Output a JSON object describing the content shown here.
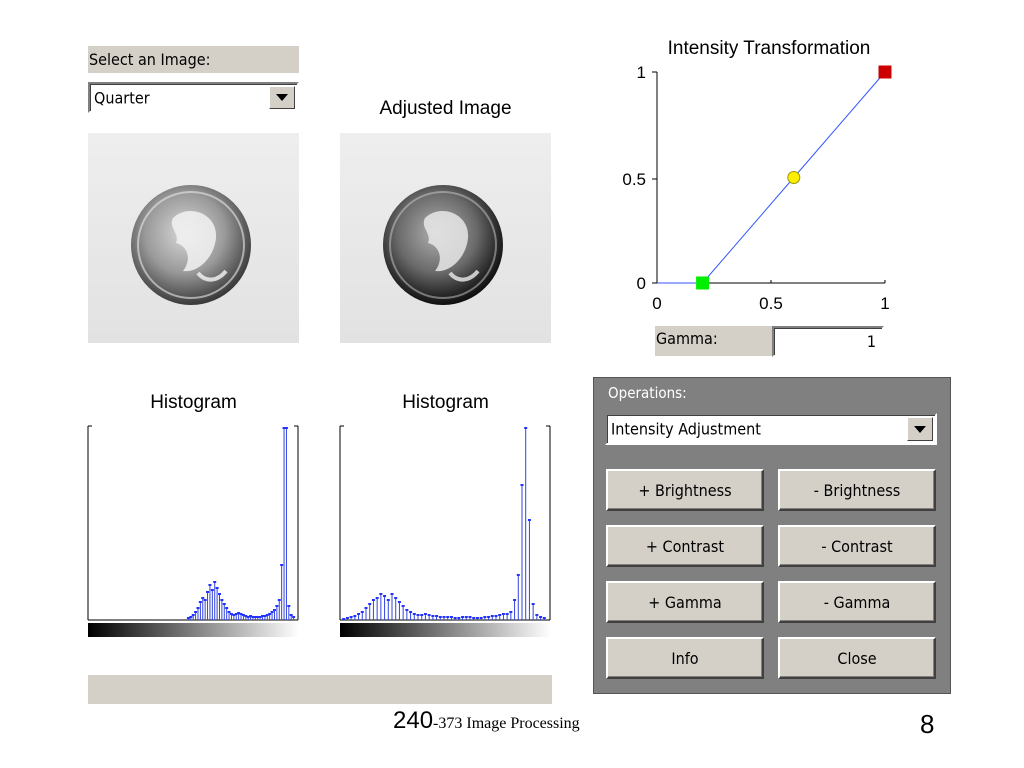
{
  "select_image": {
    "label": "Select an Image:",
    "value": "Quarter"
  },
  "adjusted_image": {
    "title": "Adjusted Image"
  },
  "histograms": {
    "left": {
      "title": "Histogram"
    },
    "right": {
      "title": "Histogram"
    }
  },
  "transform_plot": {
    "title": "Intensity Transformation",
    "y_ticks": [
      "1",
      "0.5",
      "0"
    ],
    "x_ticks": [
      "0",
      "0.5",
      "1"
    ],
    "points": [
      {
        "name": "low",
        "x": 0.2,
        "y": 0.0,
        "color": "#00ee00"
      },
      {
        "name": "mid",
        "x": 0.6,
        "y": 0.5,
        "color": "#ffee00"
      },
      {
        "name": "high",
        "x": 1.0,
        "y": 1.0,
        "color": "#cc0000"
      }
    ]
  },
  "gamma": {
    "label": "Gamma:",
    "value": "1"
  },
  "operations": {
    "label": "Operations:",
    "value": "Intensity Adjustment",
    "buttons": [
      {
        "id": "plus-brightness",
        "label": "+ Brightness"
      },
      {
        "id": "minus-brightness",
        "label": "- Brightness"
      },
      {
        "id": "plus-contrast",
        "label": "+ Contrast"
      },
      {
        "id": "minus-contrast",
        "label": "- Contrast"
      },
      {
        "id": "plus-gamma",
        "label": "+ Gamma"
      },
      {
        "id": "minus-gamma",
        "label": "- Gamma"
      },
      {
        "id": "info",
        "label": "Info"
      },
      {
        "id": "close",
        "label": "Close"
      }
    ]
  },
  "footer": {
    "course_number": "240",
    "course_rest": "-373 Image Processing",
    "page_number": "8"
  },
  "colors": {
    "panel_gray": "#d4d0c8",
    "ops_panel": "#808080",
    "plot_line": "#3355ff"
  }
}
